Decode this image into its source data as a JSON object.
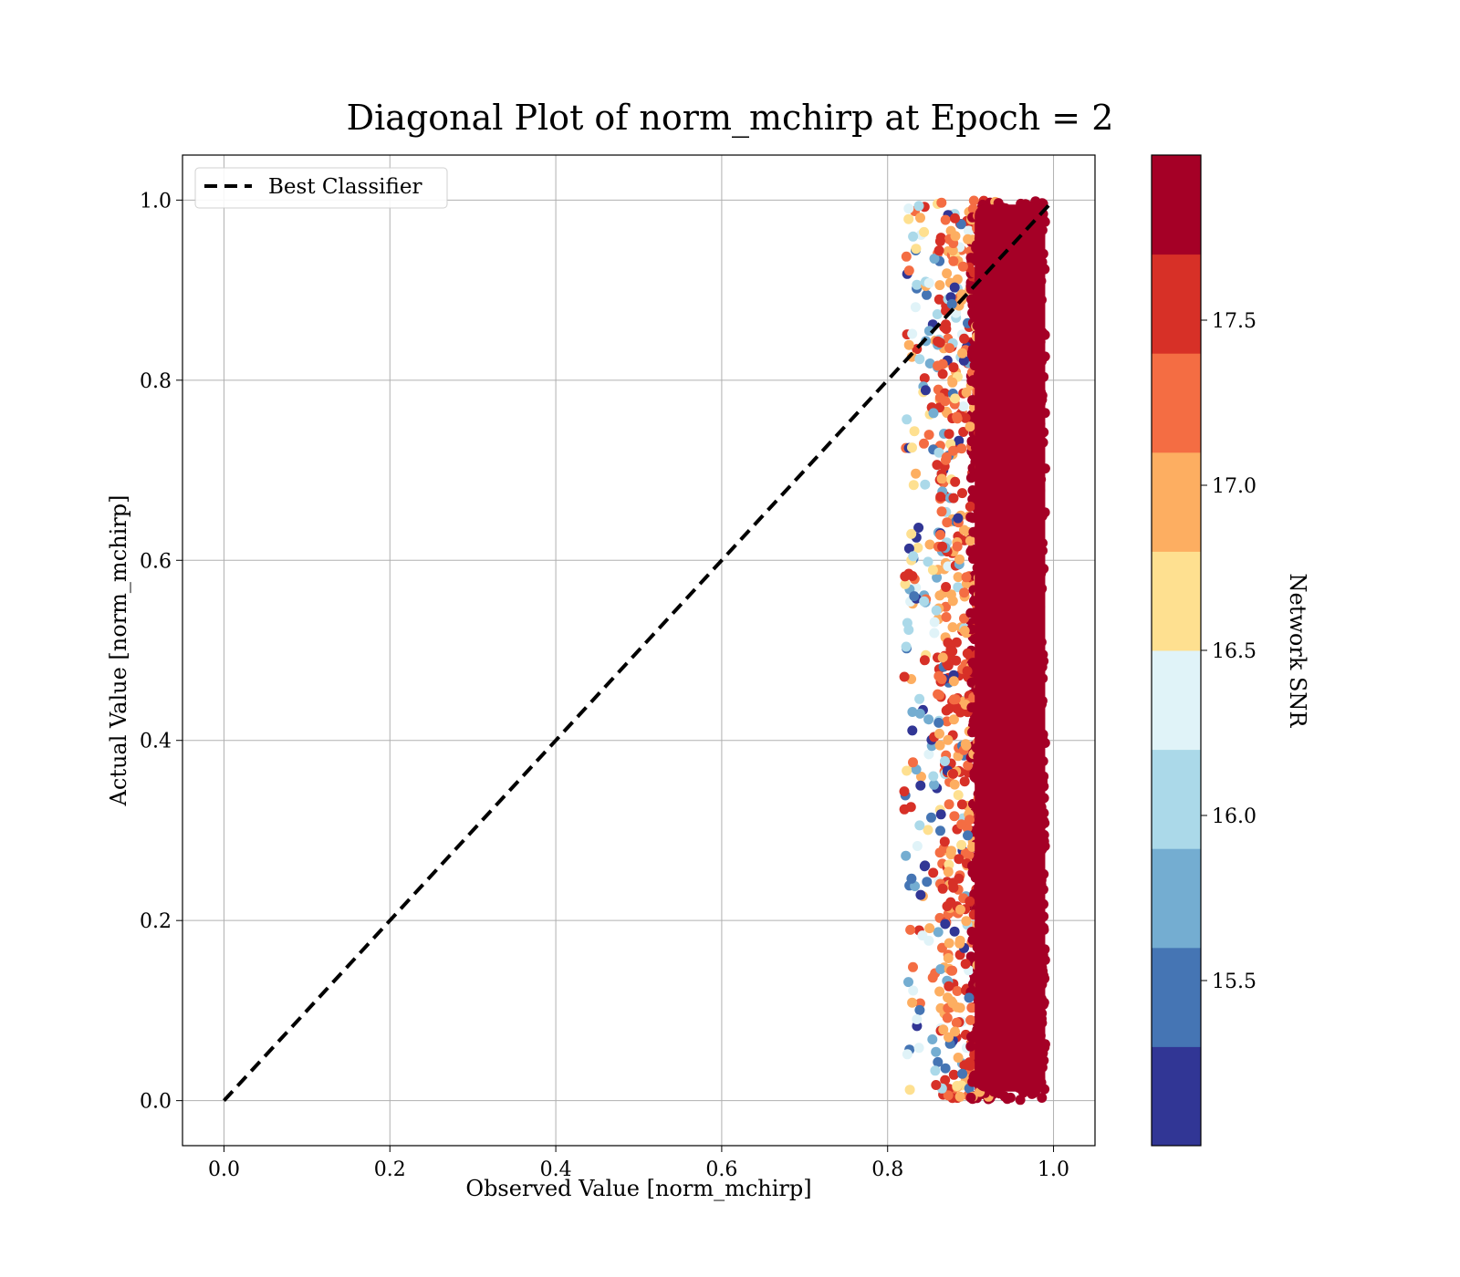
{
  "chart_data": {
    "type": "scatter",
    "title": "Diagonal Plot of norm_mchirp at Epoch = 2",
    "xlabel": "Observed Value [norm_mchirp]",
    "ylabel": "Actual Value [norm_mchirp]",
    "xlim": [
      -0.05,
      1.05
    ],
    "ylim": [
      -0.05,
      1.05
    ],
    "x_ticks": [
      0.0,
      0.2,
      0.4,
      0.6,
      0.8,
      1.0
    ],
    "x_tick_labels": [
      "0.0",
      "0.2",
      "0.4",
      "0.6",
      "0.8",
      "1.0"
    ],
    "y_ticks": [
      0.0,
      0.2,
      0.4,
      0.6,
      0.8,
      1.0
    ],
    "y_tick_labels": [
      "0.0",
      "0.2",
      "0.4",
      "0.6",
      "0.8",
      "1.0"
    ],
    "grid": true,
    "legend": {
      "placement": "top-left",
      "entries": [
        "Best Classifier"
      ]
    },
    "reference_line": {
      "name": "Best Classifier",
      "style": "dashed",
      "color": "#000000",
      "x": [
        0.0,
        1.0
      ],
      "y": [
        0.0,
        1.0
      ]
    },
    "scatter_extent": {
      "x_range": [
        0.82,
        1.0
      ],
      "y_range": [
        0.0,
        1.0
      ],
      "dense_core_x_range": [
        0.9,
        0.99
      ],
      "dominant_color": "#a50026"
    },
    "colorbar": {
      "label": "Network SNR",
      "range": [
        15.0,
        18.0
      ],
      "ticks": [
        15.5,
        16.0,
        16.5,
        17.0,
        17.5
      ],
      "tick_labels": [
        "15.5",
        "16.0",
        "16.5",
        "17.0",
        "17.5"
      ],
      "colors": [
        "#313695",
        "#4575b4",
        "#74add1",
        "#abd9e9",
        "#e0f3f8",
        "#fee090",
        "#fdae61",
        "#f46d43",
        "#d73027",
        "#a50026"
      ]
    }
  }
}
